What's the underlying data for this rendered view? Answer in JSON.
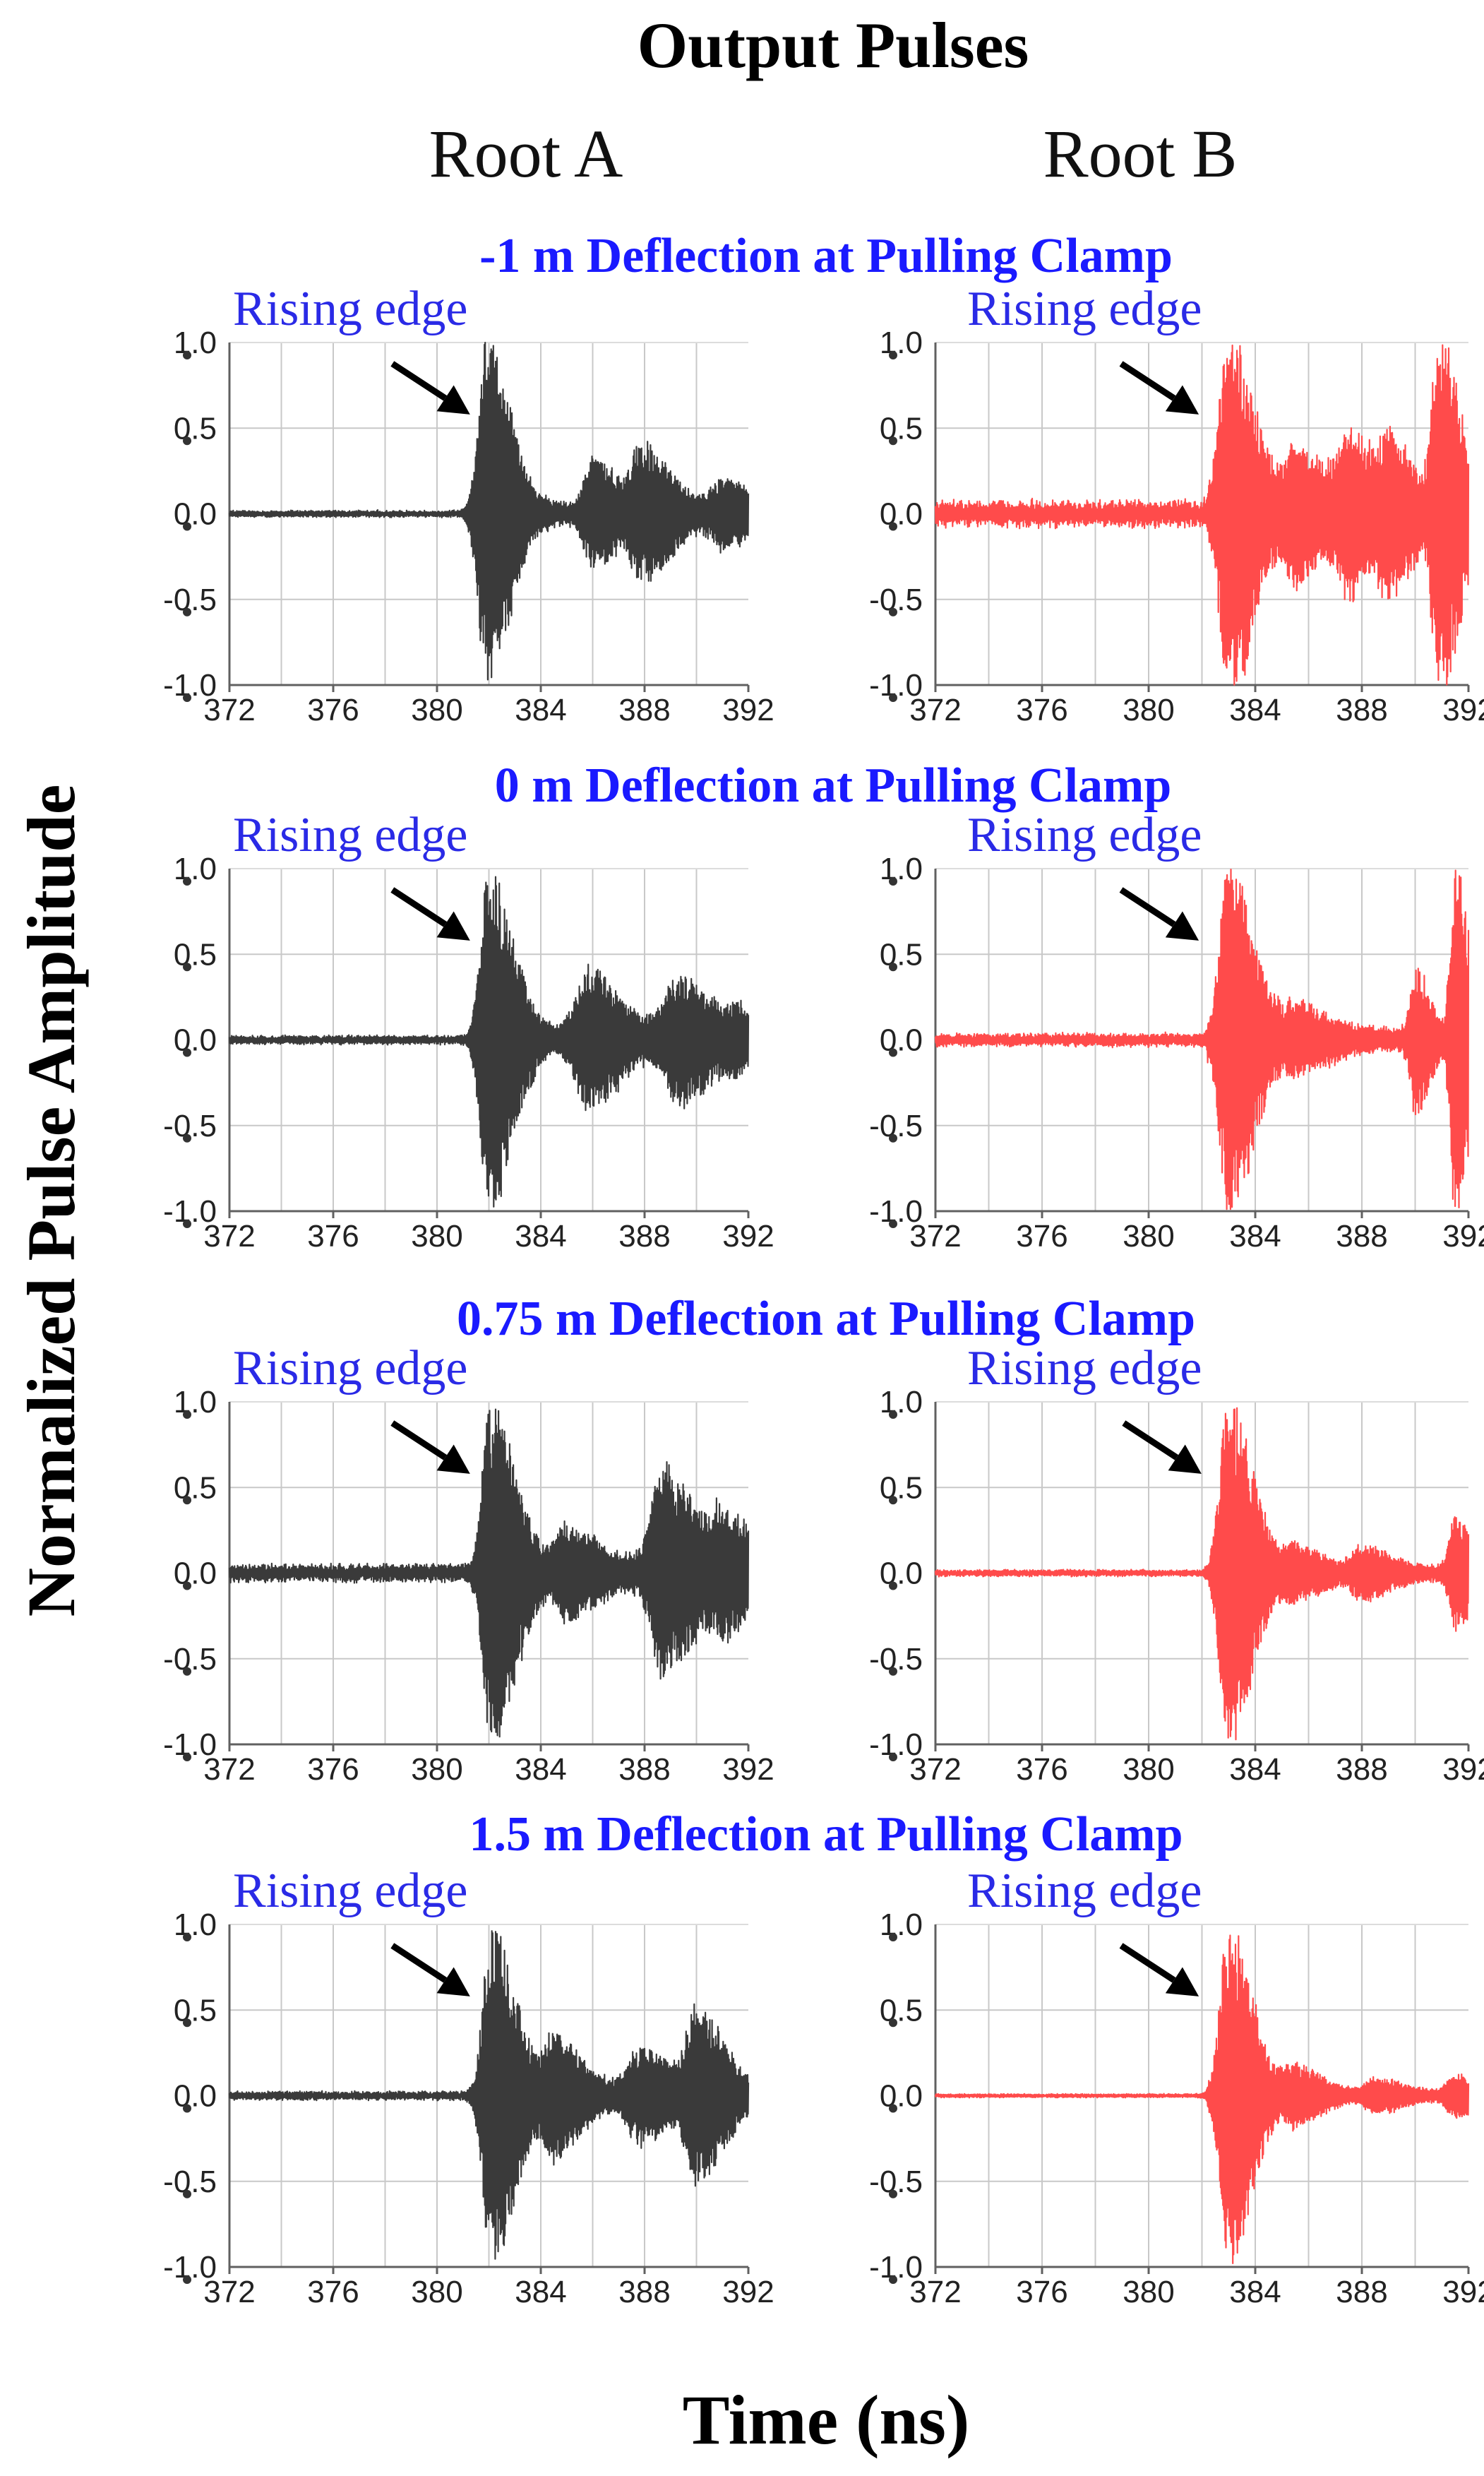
{
  "figure": {
    "title": "Output Pulses",
    "column_labels": [
      "Root A",
      "Root B"
    ],
    "y_label": "Normalized Pulse Amplitude",
    "x_label": "Time (ns)",
    "annotation_text": "Rising edge",
    "colors": {
      "title": "#000000",
      "panel_titles": "#1a1aff",
      "annotation_text": "#2a2ae6",
      "root_a_trace": "#3a3a3a",
      "root_b_trace": "#ff4b4b",
      "arrow": "#000000",
      "grid": "#c8c8c8",
      "axis": "#606060"
    }
  },
  "chart_data": [
    {
      "type": "line",
      "panel_title": "-1 m Deflection at Pulling Clamp",
      "series_label": "Root A",
      "x_ticks": [
        "372",
        "376",
        "380",
        "384",
        "388",
        "392"
      ],
      "y_ticks": [
        "1.0",
        "0.5",
        "0.0",
        "-0.5",
        "-1.0"
      ],
      "xlim": [
        372,
        392
      ],
      "ylim": [
        -1,
        1
      ],
      "annotation": "Rising edge",
      "rising_edge_ns": 381.6,
      "bursts": [
        [
          381.9,
          0.95,
          0.9
        ],
        [
          386.0,
          0.28,
          0.9
        ],
        [
          387.9,
          0.35,
          1.1
        ],
        [
          391.0,
          0.15,
          1.1
        ]
      ],
      "noise": 0.015,
      "post_noise": 0.06
    },
    {
      "type": "line",
      "panel_title": "-1 m Deflection at Pulling Clamp",
      "series_label": "Root B",
      "x_ticks": [
        "372",
        "376",
        "380",
        "384",
        "388",
        "392"
      ],
      "y_ticks": [
        "1.0",
        "0.5",
        "0.0",
        "-0.5",
        "-1.0"
      ],
      "xlim": [
        372,
        392
      ],
      "ylim": [
        -1,
        1
      ],
      "annotation": "Rising edge",
      "rising_edge_ns": 382.2,
      "bursts": [
        [
          383.0,
          1.0,
          0.9
        ],
        [
          385.5,
          0.3,
          1.0
        ],
        [
          387.5,
          0.35,
          1.0
        ],
        [
          389.0,
          0.3,
          0.8
        ],
        [
          390.9,
          1.0,
          0.7
        ]
      ],
      "noise": 0.06,
      "post_noise": 0.08
    },
    {
      "type": "line",
      "panel_title": "0 m Deflection at Pulling Clamp",
      "series_label": "Root A",
      "x_ticks": [
        "372",
        "376",
        "380",
        "384",
        "388",
        "392"
      ],
      "y_ticks": [
        "1.0",
        "0.5",
        "0.0",
        "-0.5",
        "-1.0"
      ],
      "xlim": [
        372,
        392
      ],
      "ylim": [
        -1,
        1
      ],
      "annotation": "Rising edge",
      "rising_edge_ns": 381.6,
      "bursts": [
        [
          382.0,
          0.95,
          0.9
        ],
        [
          385.8,
          0.35,
          1.2
        ],
        [
          389.3,
          0.32,
          1.3
        ],
        [
          391.6,
          0.1,
          0.8
        ]
      ],
      "noise": 0.02,
      "post_noise": 0.07
    },
    {
      "type": "line",
      "panel_title": "0 m Deflection at Pulling Clamp",
      "series_label": "Root B",
      "x_ticks": [
        "372",
        "376",
        "380",
        "384",
        "388",
        "392"
      ],
      "y_ticks": [
        "1.0",
        "0.5",
        "0.0",
        "-0.5",
        "-1.0"
      ],
      "xlim": [
        372,
        392
      ],
      "ylim": [
        -1,
        1
      ],
      "annotation": "Rising edge",
      "rising_edge_ns": 382.2,
      "bursts": [
        [
          383.0,
          1.0,
          0.9
        ],
        [
          385.5,
          0.15,
          1.2
        ],
        [
          390.0,
          0.4,
          0.5
        ],
        [
          391.5,
          1.0,
          0.5
        ]
      ],
      "noise": 0.03,
      "post_noise": 0.05
    },
    {
      "type": "line",
      "panel_title": "0.75 m Deflection at Pulling Clamp",
      "series_label": "Root A",
      "x_ticks": [
        "372",
        "376",
        "380",
        "384",
        "388",
        "392"
      ],
      "y_ticks": [
        "1.0",
        "0.5",
        "0.0",
        "-0.5",
        "-1.0"
      ],
      "xlim": [
        372,
        392
      ],
      "ylim": [
        -1,
        1
      ],
      "annotation": "Rising edge",
      "rising_edge_ns": 381.6,
      "bursts": [
        [
          382.1,
          0.95,
          0.9
        ],
        [
          385.0,
          0.2,
          1.0
        ],
        [
          388.7,
          0.55,
          1.2
        ],
        [
          391.0,
          0.25,
          1.0
        ]
      ],
      "noise": 0.04,
      "post_noise": 0.07
    },
    {
      "type": "line",
      "panel_title": "0.75 m Deflection at Pulling Clamp",
      "series_label": "Root B",
      "x_ticks": [
        "372",
        "376",
        "380",
        "384",
        "388",
        "392"
      ],
      "y_ticks": [
        "1.0",
        "0.5",
        "0.0",
        "-0.5",
        "-1.0"
      ],
      "xlim": [
        372,
        392
      ],
      "ylim": [
        -1,
        1
      ],
      "annotation": "Rising edge",
      "rising_edge_ns": 382.3,
      "bursts": [
        [
          383.0,
          1.0,
          0.9
        ],
        [
          385.5,
          0.12,
          1.0
        ],
        [
          388.0,
          0.12,
          1.0
        ],
        [
          391.5,
          0.3,
          0.6
        ]
      ],
      "noise": 0.015,
      "post_noise": 0.04
    },
    {
      "type": "line",
      "panel_title": "1.5 m Deflection at Pulling Clamp",
      "series_label": "Root A",
      "x_ticks": [
        "372",
        "376",
        "380",
        "384",
        "388",
        "392"
      ],
      "y_ticks": [
        "1.0",
        "0.5",
        "0.0",
        "-0.5",
        "-1.0"
      ],
      "xlim": [
        372,
        392
      ],
      "ylim": [
        -1,
        1
      ],
      "annotation": "Rising edge",
      "rising_edge_ns": 381.6,
      "bursts": [
        [
          382.1,
          0.95,
          0.9
        ],
        [
          384.5,
          0.3,
          1.0
        ],
        [
          387.8,
          0.22,
          1.2
        ],
        [
          390.0,
          0.45,
          1.0
        ]
      ],
      "noise": 0.02,
      "post_noise": 0.06
    },
    {
      "type": "line",
      "panel_title": "1.5 m Deflection at Pulling Clamp",
      "series_label": "Root B",
      "x_ticks": [
        "372",
        "376",
        "380",
        "384",
        "388",
        "392"
      ],
      "y_ticks": [
        "1.0",
        "0.5",
        "0.0",
        "-0.5",
        "-1.0"
      ],
      "xlim": [
        372,
        392
      ],
      "ylim": [
        -1,
        1
      ],
      "annotation": "Rising edge",
      "rising_edge_ns": 382.2,
      "bursts": [
        [
          383.0,
          0.98,
          0.9
        ],
        [
          385.5,
          0.15,
          1.0
        ],
        [
          388.5,
          0.08,
          1.0
        ],
        [
          391.5,
          0.1,
          0.8
        ]
      ],
      "noise": 0.008,
      "post_noise": 0.03
    }
  ]
}
